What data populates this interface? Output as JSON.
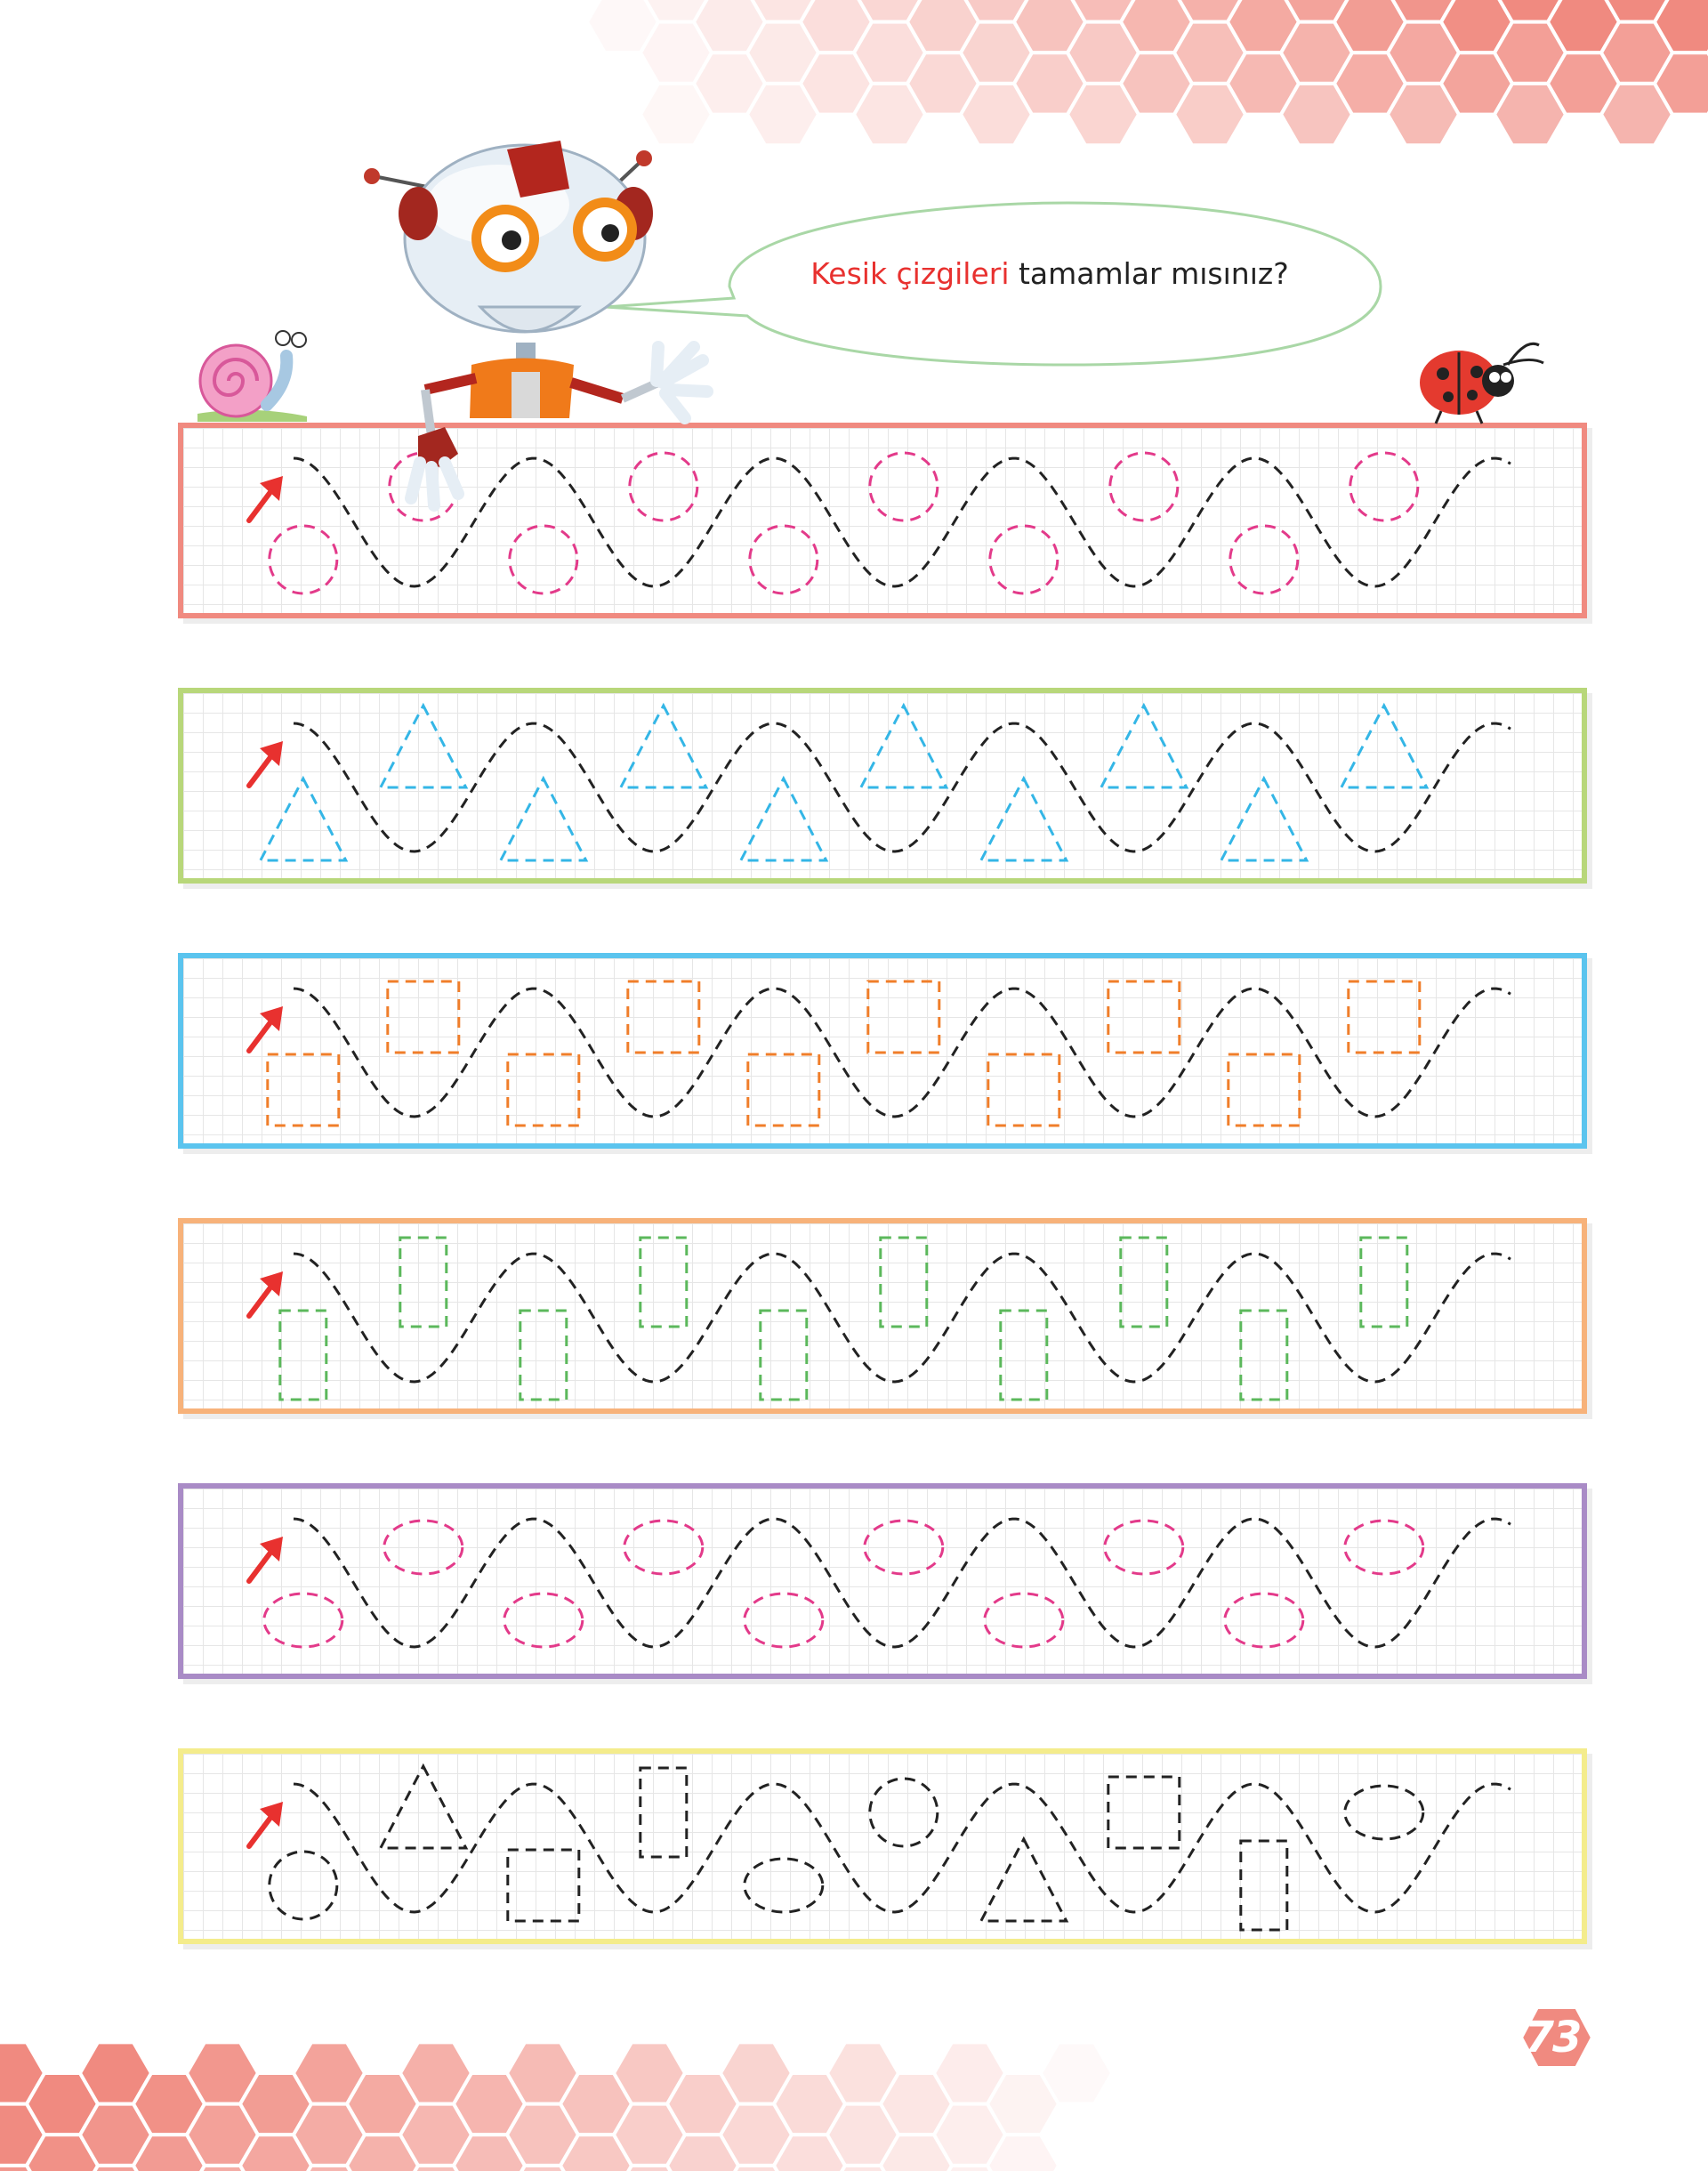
{
  "header": {
    "prompt_hl": "Kesik çizgileri",
    "prompt_rest": " tamamlar mısınız?"
  },
  "page_number": "73",
  "colors": {
    "panel_borders": [
      "#f08a80",
      "#b8d77a",
      "#5bc4ee",
      "#f7b27a",
      "#a98bc6",
      "#f4ec8c"
    ],
    "shape_colors": [
      "#e33a8a",
      "#34b6e6",
      "#f07e2a",
      "#5cb85c",
      "#e33a8a",
      "#222222"
    ],
    "hexagon": "#f08a80",
    "arrow": "#e8312f",
    "wave": "#222222"
  },
  "rows": [
    {
      "shapes": [
        "circle"
      ]
    },
    {
      "shapes": [
        "triangle"
      ]
    },
    {
      "shapes": [
        "square"
      ]
    },
    {
      "shapes": [
        "rect"
      ]
    },
    {
      "shapes": [
        "ellipse"
      ]
    },
    {
      "shapes": [
        "circle",
        "triangle",
        "square",
        "rect",
        "ellipse",
        "circle",
        "triangle",
        "square",
        "rect",
        "ellipse"
      ]
    }
  ],
  "icons": [
    "robot-icon",
    "snail-icon",
    "ladybug-icon",
    "start-arrow-icon"
  ]
}
